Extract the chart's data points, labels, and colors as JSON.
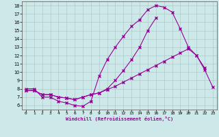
{
  "line1_x": [
    0,
    1,
    2,
    3,
    4,
    5,
    6,
    7,
    8,
    9,
    10,
    11,
    12,
    13,
    14,
    15,
    16,
    17,
    18,
    19,
    20,
    21,
    22
  ],
  "line1_y": [
    8,
    8,
    7,
    7,
    6.5,
    6.3,
    6,
    5.9,
    6.5,
    9.5,
    11.5,
    13,
    14.3,
    15.5,
    16.3,
    17.5,
    18,
    17.8,
    17.2,
    15.2,
    13,
    12,
    10.5
  ],
  "line2_x": [
    0,
    1,
    2,
    3,
    4,
    5,
    6,
    7,
    8,
    9,
    10,
    11,
    12,
    13,
    14,
    15,
    16,
    17,
    18,
    19,
    20,
    21,
    22,
    23
  ],
  "line2_y": [
    7.8,
    7.8,
    7.3,
    7.3,
    7.0,
    6.9,
    6.7,
    7.0,
    7.3,
    7.5,
    7.9,
    8.3,
    8.8,
    9.3,
    9.8,
    10.3,
    10.8,
    11.3,
    11.8,
    12.3,
    12.8,
    12.0,
    10.3,
    8.2
  ],
  "line3_x": [
    0,
    1,
    2,
    3,
    4,
    5,
    6,
    7,
    8,
    9,
    10,
    11,
    12,
    13,
    14,
    15,
    16
  ],
  "line3_y": [
    7.8,
    7.8,
    7.3,
    7.3,
    7.0,
    6.9,
    6.7,
    7.0,
    7.3,
    7.5,
    8.0,
    9.0,
    10.2,
    11.5,
    13.0,
    15.0,
    16.5
  ],
  "line_color": "#990099",
  "bg_color": "#cce8e8",
  "grid_color": "#b0c8c8",
  "xlabel": "Windchill (Refroidissement éolien,°C)",
  "ylim": [
    5.5,
    18.5
  ],
  "xlim": [
    -0.5,
    23.5
  ],
  "yticks": [
    6,
    7,
    8,
    9,
    10,
    11,
    12,
    13,
    14,
    15,
    16,
    17,
    18
  ],
  "xticks": [
    0,
    1,
    2,
    3,
    4,
    5,
    6,
    7,
    8,
    9,
    10,
    11,
    12,
    13,
    14,
    15,
    16,
    17,
    18,
    19,
    20,
    21,
    22,
    23
  ]
}
